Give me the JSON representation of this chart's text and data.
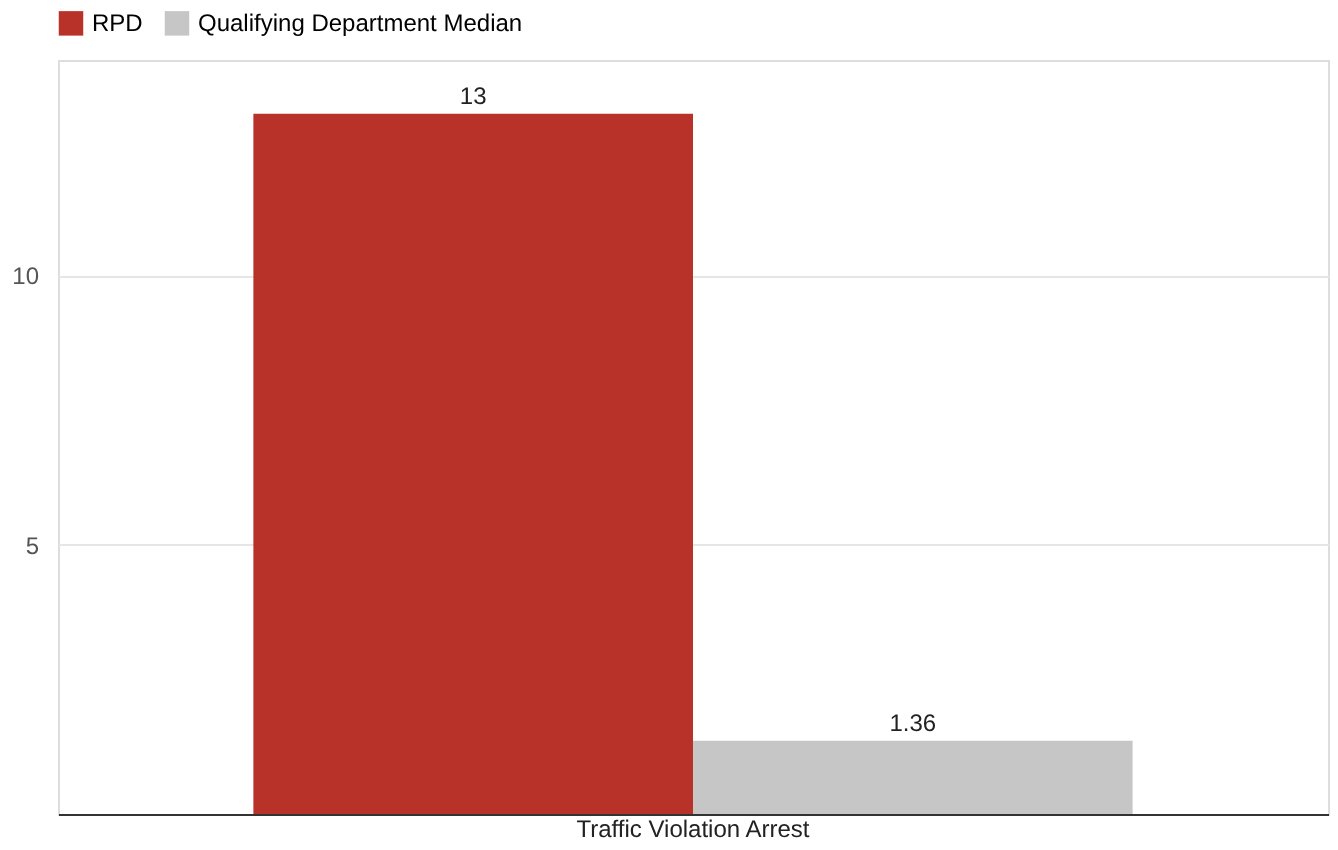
{
  "chart_data": {
    "type": "bar",
    "categories": [
      "Traffic Violation Arrest"
    ],
    "series": [
      {
        "name": "RPD",
        "color": "#b8322a",
        "values": [
          13
        ]
      },
      {
        "name": "Qualifying Department Median",
        "color": "#c6c6c6",
        "values": [
          1.36
        ]
      }
    ],
    "ylim": [
      0,
      14
    ],
    "yticks": [
      {
        "value": 0,
        "label": null
      },
      5,
      10
    ],
    "grid": "y",
    "legend": "top left",
    "data_labels": true
  }
}
